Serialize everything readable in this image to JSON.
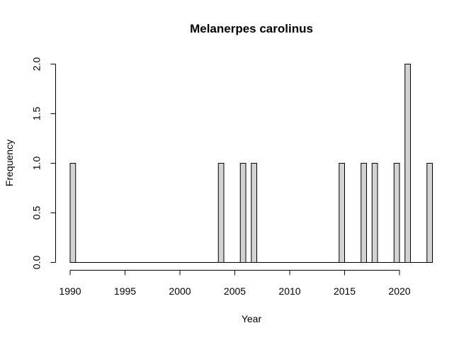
{
  "chart_data": {
    "type": "bar",
    "title": "Melanerpes carolinus",
    "xlabel": "Year",
    "ylabel": "Frequency",
    "bin_width": 0.5,
    "xlim": [
      1990,
      2023
    ],
    "ylim": [
      0,
      2
    ],
    "x_ticks": [
      "1990",
      "1995",
      "2000",
      "2005",
      "2010",
      "2015",
      "2020"
    ],
    "y_ticks": [
      "0.0",
      "0.5",
      "1.0",
      "1.5",
      "2.0"
    ],
    "bars": [
      {
        "x": 1990,
        "value": 1
      },
      {
        "x": 2003.5,
        "value": 1
      },
      {
        "x": 2005.5,
        "value": 1
      },
      {
        "x": 2006.5,
        "value": 1
      },
      {
        "x": 2014.5,
        "value": 1
      },
      {
        "x": 2016.5,
        "value": 1
      },
      {
        "x": 2017.5,
        "value": 1
      },
      {
        "x": 2019.5,
        "value": 1
      },
      {
        "x": 2020.5,
        "value": 2
      },
      {
        "x": 2022.5,
        "value": 1
      }
    ],
    "bar_fill": "#d3d3d3",
    "bar_stroke": "#000000",
    "grid": false,
    "legend": "none"
  }
}
